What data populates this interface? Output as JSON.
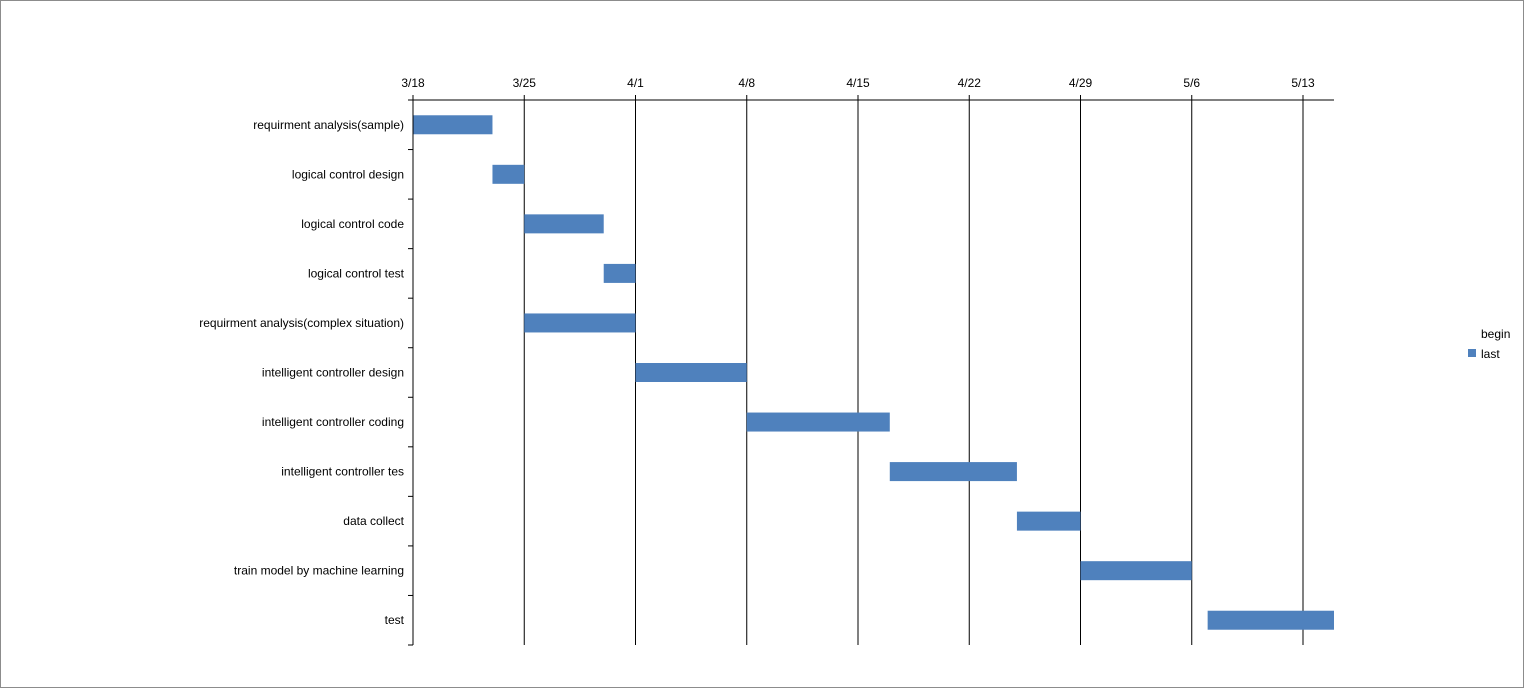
{
  "chart_data": {
    "type": "bar",
    "orientation": "horizontal",
    "style": "gantt",
    "x_tick_labels": [
      "3/18",
      "3/25",
      "4/1",
      "4/8",
      "4/15",
      "4/22",
      "4/29",
      "5/6",
      "5/13"
    ],
    "x_axis_position": "top",
    "xlim": [
      "3/18",
      "5/16"
    ],
    "grid": "vertical major gridlines",
    "categories": [
      "requirment analysis(sample)",
      "logical control design",
      "logical control code",
      "logical control test",
      "requirment analysis(complex situation)",
      "intelligent controller design",
      "intelligent controller coding",
      "intelligent controller tes",
      "data collect",
      "train model by machine learning",
      "test"
    ],
    "series": [
      {
        "name": "begin",
        "visible": false,
        "values": [
          "3/18",
          "3/23",
          "3/25",
          "3/30",
          "3/25",
          "4/1",
          "4/8",
          "4/17",
          "4/25",
          "4/29",
          "5/7"
        ]
      },
      {
        "name": "last",
        "color": "#4F81BD",
        "unit": "days",
        "values": [
          5,
          2,
          5,
          2,
          7,
          7,
          9,
          8,
          4,
          7,
          8
        ]
      }
    ],
    "legend": {
      "position": "right",
      "entries": [
        "begin",
        "last"
      ]
    }
  }
}
